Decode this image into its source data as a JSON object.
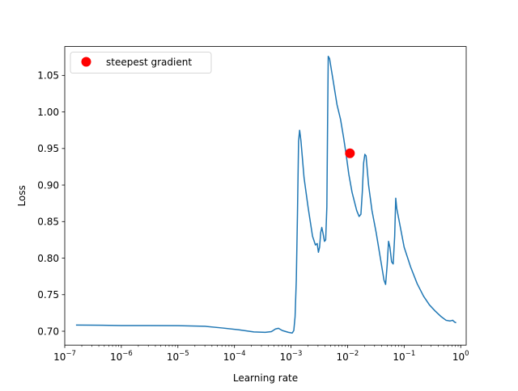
{
  "chart_data": {
    "type": "line",
    "xlabel": "Learning rate",
    "ylabel": "Loss",
    "x_scale": "log",
    "xlim": [
      1e-07,
      1.25
    ],
    "ylim": [
      0.681,
      1.0895
    ],
    "x_ticks": [
      {
        "value": 1e-07,
        "base": "10",
        "exp": "−7"
      },
      {
        "value": 1e-06,
        "base": "10",
        "exp": "−6"
      },
      {
        "value": 1e-05,
        "base": "10",
        "exp": "−5"
      },
      {
        "value": 0.0001,
        "base": "10",
        "exp": "−4"
      },
      {
        "value": 0.001,
        "base": "10",
        "exp": "−3"
      },
      {
        "value": 0.01,
        "base": "10",
        "exp": "−2"
      },
      {
        "value": 0.1,
        "base": "10",
        "exp": "−1"
      },
      {
        "value": 1,
        "base": "10",
        "exp": "0"
      }
    ],
    "y_ticks": [
      {
        "value": 0.7,
        "label": "0.70"
      },
      {
        "value": 0.75,
        "label": "0.75"
      },
      {
        "value": 0.8,
        "label": "0.80"
      },
      {
        "value": 0.85,
        "label": "0.85"
      },
      {
        "value": 0.9,
        "label": "0.90"
      },
      {
        "value": 0.95,
        "label": "0.95"
      },
      {
        "value": 1.0,
        "label": "1.00"
      },
      {
        "value": 1.05,
        "label": "1.05"
      }
    ],
    "grid": false,
    "legend_position": "top-left",
    "line_color": "#1f77b4",
    "marker_color": "#ff0000",
    "series": [
      {
        "points": [
          [
            1.58e-07,
            0.7085
          ],
          [
            3e-07,
            0.7083
          ],
          [
            1e-06,
            0.7078
          ],
          [
            3e-06,
            0.7078
          ],
          [
            1e-05,
            0.7076
          ],
          [
            3e-05,
            0.7068
          ],
          [
            6e-05,
            0.7045
          ],
          [
            0.00012,
            0.702
          ],
          [
            0.00022,
            0.699
          ],
          [
            0.00035,
            0.6985
          ],
          [
            0.00045,
            0.6995
          ],
          [
            0.00053,
            0.703
          ],
          [
            0.0006,
            0.704
          ],
          [
            0.0007,
            0.701
          ],
          [
            0.0009,
            0.6985
          ],
          [
            0.00105,
            0.6975
          ],
          [
            0.00112,
            0.701
          ],
          [
            0.00118,
            0.72
          ],
          [
            0.00124,
            0.77
          ],
          [
            0.0013,
            0.86
          ],
          [
            0.00136,
            0.96
          ],
          [
            0.00142,
            0.975
          ],
          [
            0.0015,
            0.96
          ],
          [
            0.0017,
            0.91
          ],
          [
            0.002,
            0.87
          ],
          [
            0.0024,
            0.83
          ],
          [
            0.0027,
            0.818
          ],
          [
            0.0029,
            0.82
          ],
          [
            0.00305,
            0.808
          ],
          [
            0.0032,
            0.815
          ],
          [
            0.00335,
            0.835
          ],
          [
            0.0035,
            0.842
          ],
          [
            0.0037,
            0.833
          ],
          [
            0.0039,
            0.823
          ],
          [
            0.0041,
            0.825
          ],
          [
            0.0043,
            0.87
          ],
          [
            0.00445,
            1.0
          ],
          [
            0.00455,
            1.076
          ],
          [
            0.0048,
            1.073
          ],
          [
            0.0055,
            1.045
          ],
          [
            0.0065,
            1.01
          ],
          [
            0.0075,
            0.99
          ],
          [
            0.0085,
            0.965
          ],
          [
            0.0095,
            0.94
          ],
          [
            0.0105,
            0.915
          ],
          [
            0.012,
            0.89
          ],
          [
            0.0145,
            0.865
          ],
          [
            0.016,
            0.857
          ],
          [
            0.0172,
            0.86
          ],
          [
            0.0182,
            0.89
          ],
          [
            0.0192,
            0.93
          ],
          [
            0.0202,
            0.942
          ],
          [
            0.0212,
            0.94
          ],
          [
            0.0235,
            0.9
          ],
          [
            0.027,
            0.865
          ],
          [
            0.032,
            0.835
          ],
          [
            0.038,
            0.8
          ],
          [
            0.044,
            0.77
          ],
          [
            0.047,
            0.764
          ],
          [
            0.05,
            0.79
          ],
          [
            0.053,
            0.823
          ],
          [
            0.056,
            0.815
          ],
          [
            0.06,
            0.795
          ],
          [
            0.064,
            0.792
          ],
          [
            0.068,
            0.83
          ],
          [
            0.071,
            0.882
          ],
          [
            0.074,
            0.868
          ],
          [
            0.082,
            0.85
          ],
          [
            0.1,
            0.815
          ],
          [
            0.13,
            0.788
          ],
          [
            0.17,
            0.765
          ],
          [
            0.22,
            0.748
          ],
          [
            0.28,
            0.736
          ],
          [
            0.35,
            0.728
          ],
          [
            0.45,
            0.72
          ],
          [
            0.55,
            0.715
          ],
          [
            0.65,
            0.714
          ],
          [
            0.72,
            0.715
          ],
          [
            0.78,
            0.7125
          ],
          [
            0.83,
            0.7115
          ]
        ]
      }
    ],
    "marker": {
      "x": 0.011,
      "y": 0.9435
    },
    "legend": [
      {
        "label": "steepest gradient",
        "marker": "circle"
      }
    ]
  }
}
